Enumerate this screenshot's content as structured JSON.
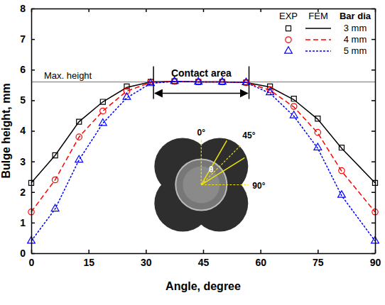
{
  "chart_data": {
    "type": "line",
    "x_label": "Angle, degree",
    "y_label": "Bulge height, mm",
    "x": [
      0,
      6.25,
      12.5,
      18.75,
      25,
      31.25,
      37.5,
      43.75,
      50,
      56.25,
      62.5,
      68.75,
      75,
      81.25,
      90
    ],
    "xlim": [
      0,
      90
    ],
    "xticks": [
      0,
      15,
      30,
      45,
      60,
      75,
      90
    ],
    "ylim": [
      0,
      8
    ],
    "yticks": [
      0,
      1,
      2,
      3,
      4,
      5,
      6,
      7,
      8
    ],
    "legend": "top right",
    "legend_headers": [
      "EXP",
      "FEM",
      "Bar dia"
    ],
    "series": [
      {
        "name": "3 mm",
        "color": "#000000",
        "marker": "square",
        "line_style": "solid",
        "values": [
          2.3,
          3.2,
          4.3,
          4.95,
          5.45,
          5.6,
          5.62,
          5.6,
          5.6,
          5.58,
          5.45,
          5.05,
          4.4,
          3.45,
          2.3
        ],
        "fem_values": [
          2.3,
          3.2,
          4.3,
          4.95,
          5.42,
          5.6,
          5.62,
          5.6,
          5.6,
          5.58,
          5.43,
          5.02,
          4.38,
          3.43,
          2.3
        ]
      },
      {
        "name": "4 mm",
        "color": "#ff0000",
        "marker": "circle",
        "line_style": "dashed",
        "values": [
          1.35,
          2.4,
          3.8,
          4.65,
          5.3,
          5.6,
          5.62,
          5.6,
          5.6,
          5.58,
          5.35,
          4.8,
          3.95,
          2.7,
          1.35
        ],
        "fem_values": [
          1.35,
          2.4,
          3.8,
          4.65,
          5.3,
          5.58,
          5.62,
          5.6,
          5.6,
          5.58,
          5.33,
          4.78,
          3.93,
          2.68,
          1.35
        ]
      },
      {
        "name": "5 mm",
        "color": "#0000ff",
        "marker": "triangle",
        "line_style": "dotted",
        "values": [
          0.4,
          1.45,
          3.05,
          4.25,
          5.1,
          5.55,
          5.62,
          5.6,
          5.6,
          5.58,
          5.25,
          4.5,
          3.45,
          1.9,
          0.4
        ],
        "fem_values": [
          0.4,
          1.45,
          3.05,
          4.25,
          5.08,
          5.55,
          5.62,
          5.6,
          5.6,
          5.58,
          5.23,
          4.48,
          3.43,
          1.88,
          0.4
        ]
      }
    ],
    "max_height": {
      "value": 5.6,
      "label": "Max. height"
    },
    "contact_area": {
      "label": "Contact area",
      "x": [
        32,
        57
      ]
    },
    "inset_labels": [
      "0°",
      "45°",
      "90°",
      "θ"
    ]
  }
}
